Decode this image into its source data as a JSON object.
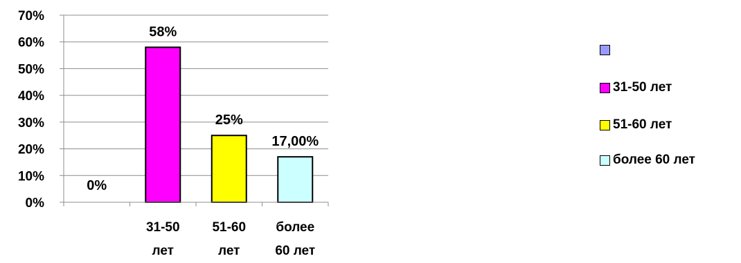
{
  "chart_data": {
    "type": "bar",
    "categories": [
      "",
      "31-50 лет",
      "51-60 лет",
      "более 60 лет"
    ],
    "category_lines": [
      [],
      [
        "31-50",
        "лет"
      ],
      [
        "51-60",
        "лет"
      ],
      [
        "более",
        "60 лет"
      ]
    ],
    "values": [
      0,
      58,
      25,
      17
    ],
    "data_labels": [
      "0%",
      "58%",
      "25%",
      "17,00%"
    ],
    "colors": [
      "#9999ff",
      "#ff00ff",
      "#ffff00",
      "#ccffff"
    ],
    "ylim": [
      0,
      70
    ],
    "yticks": [
      "0%",
      "10%",
      "20%",
      "30%",
      "40%",
      "50%",
      "60%",
      "70%"
    ],
    "grid": true,
    "legend_position": "right",
    "legend": [
      {
        "label": "",
        "color": "#9999ff"
      },
      {
        "label": "31-50 лет",
        "color": "#ff00ff"
      },
      {
        "label": "51-60 лет",
        "color": "#ffff00"
      },
      {
        "label": "более 60 лет",
        "color": "#ccffff"
      }
    ]
  }
}
